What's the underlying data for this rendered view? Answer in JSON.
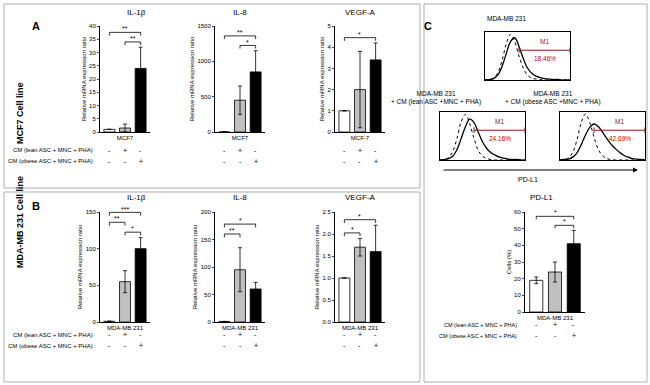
{
  "panels": [
    {
      "label": "A",
      "title": "MCF7 Cell line",
      "conditions": [
        "CM (lean ASC + MNC + PHA)",
        "CM (obese ASC + MNC + PHA)"
      ]
    },
    {
      "label": "B",
      "title": "MDA-MB 231 Cell line",
      "conditions": [
        "CM (lean ASC + MNC + PHA)",
        "CM (obese ASC + MNC + PHA)"
      ]
    },
    {
      "label": "C",
      "axis_label": "PD-L1",
      "conditions": [
        "CM (lean ASC + MNC + PHA)",
        "CM (obese ASC + MNC + PHA)"
      ]
    }
  ],
  "chart_data": [
    {
      "panel": "A",
      "type": "bar",
      "title": "IL-1β",
      "categories": [
        null,
        "MCF7",
        null
      ],
      "values": [
        1,
        1.5,
        24
      ],
      "errors": [
        0,
        1.5,
        8
      ],
      "colors": [
        "#ffffff",
        "#c0c0c0",
        "#000000"
      ],
      "ylabel": "Relative mRNA expression ratio",
      "ylim": [
        0,
        40
      ],
      "yticks": [
        0,
        5,
        10,
        15,
        20,
        25,
        30,
        35,
        40
      ],
      "grid": false,
      "signs": [
        [
          "-",
          "+",
          "-"
        ],
        [
          "-",
          "-",
          "+"
        ]
      ],
      "significance": [
        {
          "from": 1,
          "to": 2,
          "label": "**"
        },
        {
          "from": 0,
          "to": 2,
          "label": "**"
        }
      ]
    },
    {
      "panel": "A",
      "type": "bar",
      "title": "IL-8",
      "categories": [
        null,
        "MCF7",
        null
      ],
      "values": [
        1,
        450,
        850
      ],
      "errors": [
        0,
        200,
        300
      ],
      "colors": [
        "#ffffff",
        "#c0c0c0",
        "#000000"
      ],
      "ylabel": "Relative mRNA expression ratio",
      "ylim": [
        0,
        1500
      ],
      "yticks": [
        0,
        500,
        1000,
        1500
      ],
      "grid": false,
      "signs": [
        [
          "-",
          "+",
          "-"
        ],
        [
          "-",
          "-",
          "+"
        ]
      ],
      "significance": [
        {
          "from": 1,
          "to": 2,
          "label": "*"
        },
        {
          "from": 0,
          "to": 2,
          "label": "**"
        }
      ]
    },
    {
      "panel": "A",
      "type": "bar",
      "title": "VEGF-A",
      "categories": [
        null,
        "MCF-7",
        null
      ],
      "values": [
        1,
        2,
        3.4
      ],
      "errors": [
        0,
        1.8,
        0.8
      ],
      "colors": [
        "#ffffff",
        "#c0c0c0",
        "#000000"
      ],
      "ylabel": "Relative mRNA expression ratio",
      "ylim": [
        0,
        5
      ],
      "yticks": [
        0,
        1,
        2,
        3,
        4,
        5
      ],
      "grid": false,
      "signs": [
        [
          "-",
          "+",
          "-"
        ],
        [
          "-",
          "-",
          "+"
        ]
      ],
      "significance": [
        {
          "from": 0,
          "to": 2,
          "label": "*"
        }
      ]
    },
    {
      "panel": "B",
      "type": "bar",
      "title": "IL-1β",
      "categories": [
        null,
        "MDA-MB 231",
        null
      ],
      "values": [
        1,
        55,
        100
      ],
      "errors": [
        0,
        15,
        15
      ],
      "colors": [
        "#ffffff",
        "#c0c0c0",
        "#000000"
      ],
      "ylabel": "Relative mRNA expression ratio",
      "ylim": [
        0,
        150
      ],
      "yticks": [
        0,
        50,
        100,
        150
      ],
      "grid": false,
      "signs": [
        [
          "-",
          "+",
          "-"
        ],
        [
          "-",
          "-",
          "+"
        ]
      ],
      "significance": [
        {
          "from": 1,
          "to": 2,
          "label": "*"
        },
        {
          "from": 0,
          "to": 1,
          "label": "**"
        },
        {
          "from": 0,
          "to": 2,
          "label": "***"
        }
      ]
    },
    {
      "panel": "B",
      "type": "bar",
      "title": "IL-8",
      "categories": [
        null,
        "MDA-MB 231",
        null
      ],
      "values": [
        1,
        95,
        60
      ],
      "errors": [
        0,
        40,
        12
      ],
      "colors": [
        "#ffffff",
        "#c0c0c0",
        "#000000"
      ],
      "ylabel": "Relative mRNA expression ratio",
      "ylim": [
        0,
        200
      ],
      "yticks": [
        0,
        50,
        100,
        150,
        200
      ],
      "grid": false,
      "signs": [
        [
          "-",
          "+",
          "-"
        ],
        [
          "-",
          "-",
          "+"
        ]
      ],
      "significance": [
        {
          "from": 0,
          "to": 1,
          "label": "**"
        },
        {
          "from": 0,
          "to": 2,
          "label": "*"
        }
      ]
    },
    {
      "panel": "B",
      "type": "bar",
      "title": "VEGF-A",
      "categories": [
        null,
        "MDA-MB 231",
        null
      ],
      "values": [
        1,
        1.7,
        1.6
      ],
      "errors": [
        0,
        0.2,
        0.6
      ],
      "colors": [
        "#ffffff",
        "#c0c0c0",
        "#000000"
      ],
      "ylabel": "Relative mRNA expression ratio",
      "ylim": [
        0,
        2.5
      ],
      "yticks": [
        {
          "value": 0,
          "label": "0.0"
        },
        {
          "value": 0.5,
          "label": "0.5"
        },
        {
          "value": 1,
          "label": "1.0"
        },
        {
          "value": 1.5,
          "label": "1.5"
        },
        {
          "value": 2,
          "label": "2.0"
        },
        {
          "value": 2.5,
          "label": "2.5"
        }
      ],
      "grid": false,
      "signs": [
        [
          "-",
          "+",
          "-"
        ],
        [
          "-",
          "-",
          "+"
        ]
      ],
      "significance": [
        {
          "from": 0,
          "to": 1,
          "label": "*"
        },
        {
          "from": 0,
          "to": 2,
          "label": "*"
        }
      ]
    },
    {
      "panel": "C",
      "type": "line",
      "title": "MDA-MB 231",
      "x": [
        0,
        1,
        2,
        3,
        4,
        5,
        6,
        7,
        8,
        9,
        10,
        11,
        12,
        13,
        14,
        15,
        16,
        17,
        18,
        19,
        20
      ],
      "series": [
        {
          "color": "#000000",
          "line_style": "dotted",
          "values": [
            0,
            1,
            4,
            15,
            40,
            75,
            95,
            80,
            50,
            25,
            10,
            4,
            2,
            1,
            0,
            0,
            0,
            0,
            0,
            0,
            0
          ]
        },
        {
          "color": "#000000",
          "line_style": "solid",
          "values": [
            0,
            1,
            3,
            10,
            28,
            55,
            80,
            88,
            70,
            45,
            25,
            14,
            8,
            5,
            3,
            2,
            1,
            1,
            0,
            0,
            0
          ]
        }
      ],
      "xlim": [
        0,
        20
      ],
      "ylim": [
        0,
        100
      ],
      "tick_labels": false,
      "grid": false,
      "gate": {
        "label": "M1",
        "from": 8,
        "to": 20,
        "value": 18.46,
        "value_label": "18.46%"
      }
    },
    {
      "panel": "C",
      "type": "line",
      "title": "MDA-MB 231\n+ CM (lean ASC +MNC + PHA)",
      "x": [
        0,
        1,
        2,
        3,
        4,
        5,
        6,
        7,
        8,
        9,
        10,
        11,
        12,
        13,
        14,
        15,
        16,
        17,
        18,
        19,
        20
      ],
      "series": [
        {
          "color": "#000000",
          "line_style": "dotted",
          "values": [
            0,
            1,
            5,
            18,
            45,
            80,
            95,
            75,
            45,
            20,
            8,
            3,
            1,
            0,
            0,
            0,
            0,
            0,
            0,
            0,
            0
          ]
        },
        {
          "color": "#000000",
          "line_style": "solid",
          "values": [
            0,
            1,
            3,
            8,
            22,
            45,
            70,
            85,
            78,
            58,
            38,
            24,
            15,
            10,
            6,
            4,
            2,
            1,
            1,
            0,
            0
          ]
        }
      ],
      "xlim": [
        0,
        20
      ],
      "ylim": [
        0,
        100
      ],
      "tick_labels": false,
      "grid": false,
      "gate": {
        "label": "M1",
        "from": 8,
        "to": 20,
        "value": 24.16,
        "value_label": "24.16%"
      }
    },
    {
      "panel": "C",
      "type": "line",
      "title": "MDA-MB 231\n+ CM (obese ASC +MNC + PHA)",
      "x": [
        0,
        1,
        2,
        3,
        4,
        5,
        6,
        7,
        8,
        9,
        10,
        11,
        12,
        13,
        14,
        15,
        16,
        17,
        18,
        19,
        20
      ],
      "series": [
        {
          "color": "#000000",
          "line_style": "dotted",
          "values": [
            0,
            1,
            4,
            16,
            42,
            78,
            96,
            78,
            48,
            22,
            9,
            3,
            1,
            0,
            0,
            0,
            0,
            0,
            0,
            0,
            0
          ]
        },
        {
          "color": "#000000",
          "line_style": "solid",
          "values": [
            0,
            1,
            2,
            6,
            15,
            32,
            52,
            68,
            75,
            70,
            58,
            45,
            33,
            24,
            16,
            10,
            6,
            3,
            2,
            1,
            0
          ]
        }
      ],
      "xlim": [
        0,
        20
      ],
      "ylim": [
        0,
        100
      ],
      "tick_labels": false,
      "grid": false,
      "gate": {
        "label": "M1",
        "from": 8,
        "to": 20,
        "value": 42.69,
        "value_label": "42.69%"
      }
    },
    {
      "panel": "C",
      "type": "bar",
      "title": "PD-L1",
      "categories": [
        null,
        "MDA-MB 231",
        null
      ],
      "values": [
        19,
        24,
        41
      ],
      "errors": [
        2,
        6,
        8
      ],
      "colors": [
        "#ffffff",
        "#c0c0c0",
        "#000000"
      ],
      "ylabel": "Cells (%)",
      "ylim": [
        0,
        60
      ],
      "yticks": [
        0,
        10,
        20,
        30,
        40,
        50,
        60
      ],
      "grid": false,
      "signs": [
        [
          "-",
          "+",
          "-"
        ],
        [
          "-",
          "-",
          "+"
        ]
      ],
      "significance": [
        {
          "from": 1,
          "to": 2,
          "label": "*"
        },
        {
          "from": 0,
          "to": 2,
          "label": "*"
        }
      ]
    }
  ]
}
